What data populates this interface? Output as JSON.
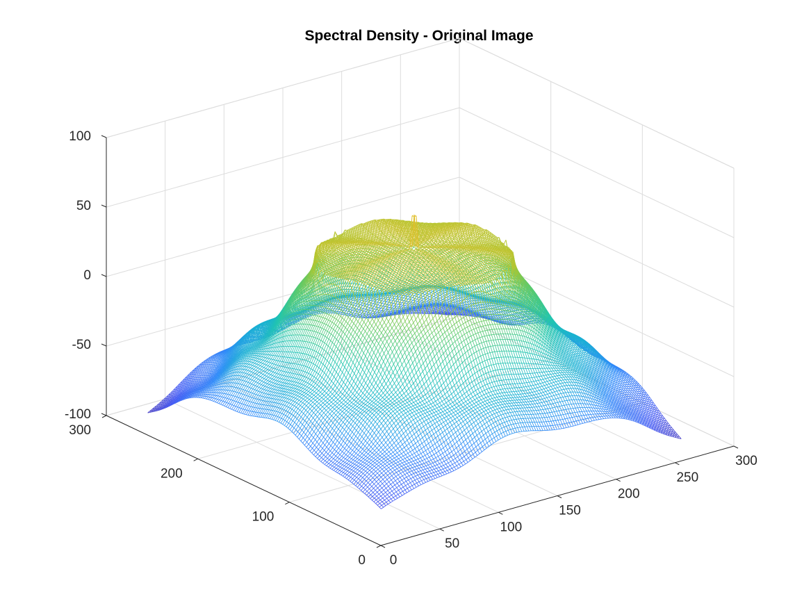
{
  "chart_data": {
    "type": "mesh3d",
    "title": "Spectral Density - Original Image",
    "xlabel": "",
    "ylabel": "",
    "zlabel": "",
    "xlim": [
      0,
      300
    ],
    "ylim": [
      0,
      300
    ],
    "zlim": [
      -100,
      100
    ],
    "x_ticks": [
      0,
      50,
      100,
      150,
      200,
      250,
      300
    ],
    "y_ticks": [
      0,
      100,
      200,
      300
    ],
    "z_ticks": [
      -100,
      -50,
      0,
      50,
      100
    ],
    "x_tick_labels": [
      "0",
      "50",
      "100",
      "150",
      "200",
      "250",
      "300"
    ],
    "y_tick_labels": [
      "0",
      "100",
      "200",
      "300"
    ],
    "z_tick_labels": [
      "-100",
      "-50",
      "0",
      "50",
      "100"
    ],
    "grid": true,
    "colormap": "parula",
    "colormap_colors": [
      "#3e26a8",
      "#4358f3",
      "#2f8bf9",
      "#1bb1d3",
      "#23c6ad",
      "#5cca6c",
      "#aac734",
      "#e0bf2a"
    ],
    "surface": {
      "domain": [
        1,
        256
      ],
      "center": [
        128,
        128
      ],
      "z_center_peak": 67,
      "z_plateau": 44,
      "z_mid_ridge": -52,
      "z_corner": -80,
      "z_edge_midpoint": -92
    }
  }
}
